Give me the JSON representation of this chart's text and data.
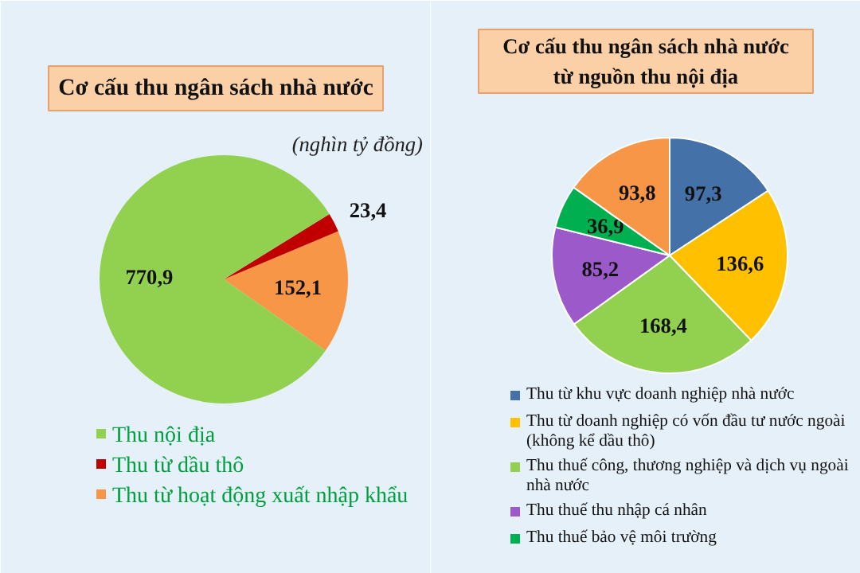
{
  "chart_data": [
    {
      "type": "pie",
      "title": "Cơ cấu thu ngân sách nhà nước",
      "categories": [
        "Thu nội địa",
        "Thu từ dầu thô",
        "Thu từ hoạt động xuất nhập khẩu"
      ],
      "values": [
        770.9,
        23.4,
        152.1
      ],
      "colors": [
        "#92d050",
        "#c00000",
        "#f79646"
      ],
      "value_labels": [
        "770,9",
        "23,4",
        "152,1"
      ],
      "legend": "bottom",
      "annotations": [
        "(nghìn tỷ đồng)"
      ]
    },
    {
      "type": "pie",
      "title": "Cơ cấu thu ngân sách nhà nước\ntừ nguồn thu nội địa",
      "categories": [
        "Thu từ khu vực doanh nghiệp nhà nước",
        "Thu từ doanh nghiệp có vốn đầu tư nước ngoài (không kể dầu thô)",
        "Thu thuế công, thương nghiệp và dịch vụ ngoài nhà nước",
        "Thu thuế thu nhập cá nhân",
        "Thu thuế bảo vệ môi trường",
        null
      ],
      "values": [
        97.3,
        136.6,
        168.4,
        85.2,
        36.9,
        93.8
      ],
      "colors": [
        "#4472a8",
        "#ffc000",
        "#92d050",
        "#9b59c9",
        "#00b050",
        "#f79646"
      ],
      "value_labels": [
        "97,3",
        "136,6",
        "168,4",
        "85,2",
        "36,9",
        "93,8"
      ],
      "legend": "bottom"
    }
  ]
}
